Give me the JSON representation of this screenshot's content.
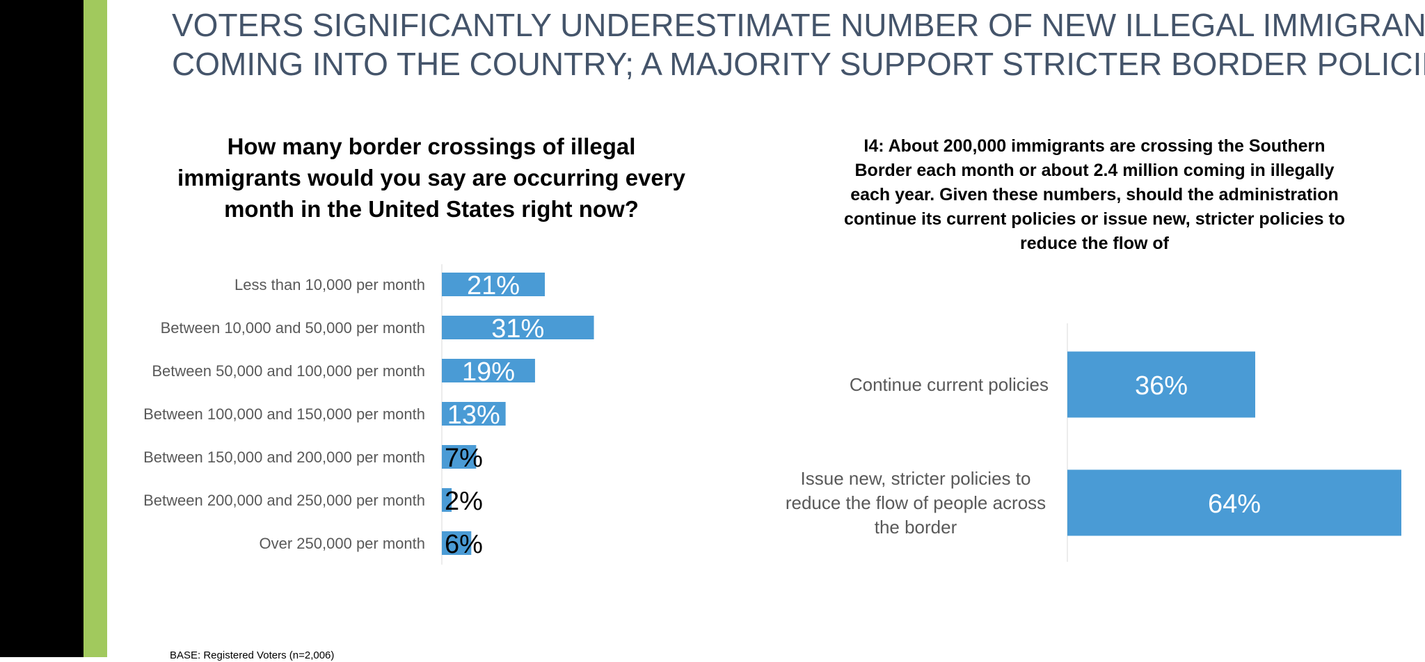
{
  "slide": {
    "title_line1": "VOTERS SIGNIFICANTLY UNDERESTIMATE NUMBER OF NEW ILLEGAL IMMIGRANTS",
    "title_line2": "COMING INTO THE COUNTRY; A MAJORITY SUPPORT STRICTER BORDER POLICIES",
    "base_note": "BASE: Registered Voters (n=2,006)"
  },
  "questions": {
    "left": [
      "How many border crossings of illegal",
      "immigrants would you say are occurring every",
      "month in the United States right now?"
    ],
    "right": [
      "I4: About 200,000 immigrants are crossing the Southern",
      "Border each month or about 2.4 million coming in illegally",
      "each year. Given these numbers, should the administration",
      "continue its current policies or issue new, stricter policies to",
      "reduce the flow of"
    ]
  },
  "chart_data": [
    {
      "type": "bar",
      "orientation": "horizontal",
      "bar_color": "#4a9bd5",
      "categories": [
        "Less than 10,000 per month",
        "Between 10,000 and 50,000 per month",
        "Between 50,000 and 100,000 per month",
        "Between 100,000 and 150,000 per month",
        "Between 150,000 and 200,000 per month",
        "Between 200,000 and 250,000 per month",
        "Over 250,000 per month"
      ],
      "values": [
        21,
        31,
        19,
        13,
        7,
        2,
        6
      ],
      "value_labels": [
        "21%",
        "31%",
        "19%",
        "13%",
        "7%",
        "2%",
        "6%"
      ]
    },
    {
      "type": "bar",
      "orientation": "horizontal",
      "bar_color": "#4a9bd5",
      "categories": [
        [
          "Continue current policies"
        ],
        [
          "Issue new, stricter policies to",
          "reduce the flow of people across",
          "the border"
        ]
      ],
      "values": [
        36,
        64
      ],
      "value_labels": [
        "36%",
        "64%"
      ]
    }
  ]
}
